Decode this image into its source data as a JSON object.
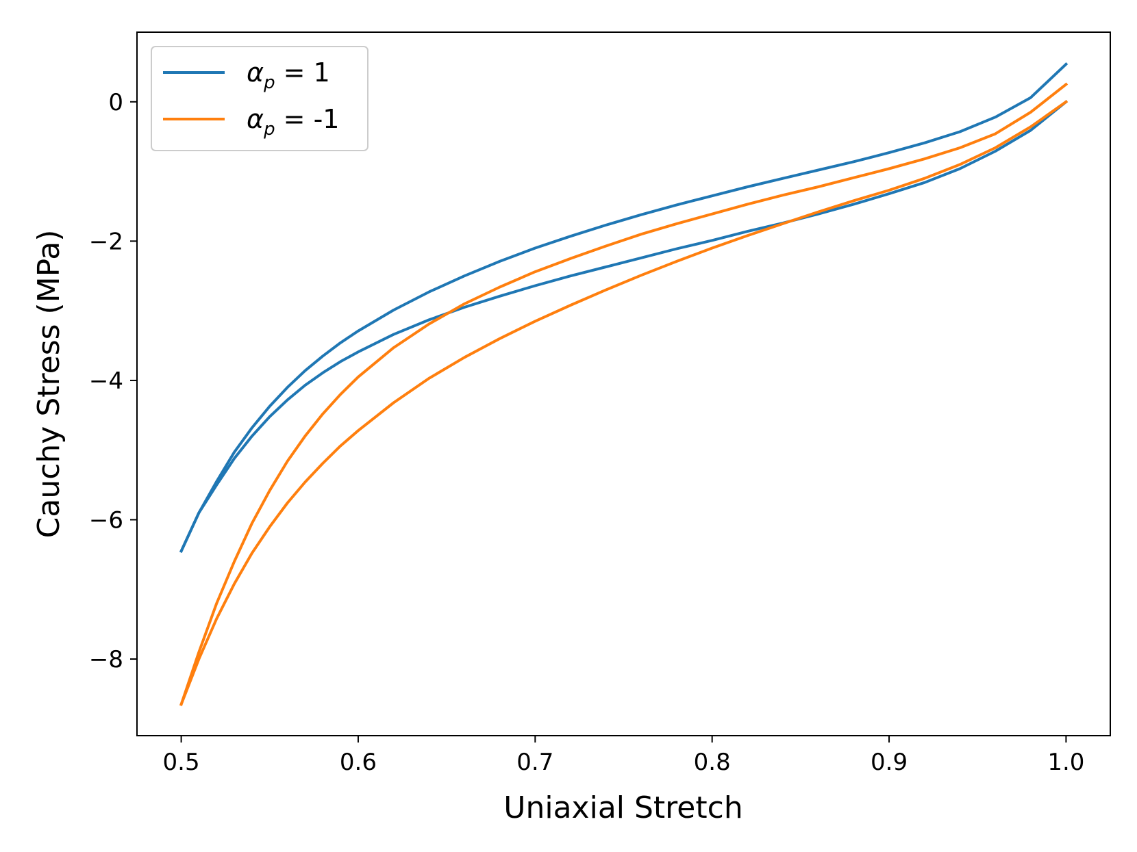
{
  "chart_data": {
    "type": "line",
    "xlabel": "Uniaxial Stretch",
    "ylabel": "Cauchy Stress (MPa)",
    "xlim": [
      0.475,
      1.025
    ],
    "ylim": [
      -9.1,
      1.0
    ],
    "xticks": [
      0.5,
      0.6,
      0.7,
      0.8,
      0.9,
      1.0
    ],
    "xtick_labels": [
      "0.5",
      "0.6",
      "0.7",
      "0.8",
      "0.9",
      "1.0"
    ],
    "yticks": [
      0,
      -2,
      -4,
      -6,
      -8
    ],
    "ytick_labels": [
      "0",
      "−2",
      "−4",
      "−6",
      "−8"
    ],
    "grid": false,
    "legend_position": "top-left",
    "series": [
      {
        "name": "α_p = 1",
        "legend_symbol": "α",
        "legend_sub": "p",
        "legend_value": " = 1",
        "color": "#1f77b4",
        "branches": [
          {
            "x": [
              0.5,
              0.51,
              0.52,
              0.53,
              0.54,
              0.55,
              0.56,
              0.57,
              0.58,
              0.59,
              0.6,
              0.62,
              0.64,
              0.66,
              0.68,
              0.7,
              0.72,
              0.74,
              0.76,
              0.78,
              0.8,
              0.82,
              0.84,
              0.86,
              0.88,
              0.9,
              0.92,
              0.94,
              0.96,
              0.98,
              1.0
            ],
            "y": [
              -6.45,
              -5.9,
              -5.45,
              -5.03,
              -4.68,
              -4.37,
              -4.1,
              -3.86,
              -3.65,
              -3.46,
              -3.29,
              -2.99,
              -2.73,
              -2.5,
              -2.29,
              -2.1,
              -1.93,
              -1.77,
              -1.62,
              -1.48,
              -1.35,
              -1.22,
              -1.1,
              -0.98,
              -0.86,
              -0.73,
              -0.59,
              -0.43,
              -0.22,
              0.06,
              0.54
            ]
          },
          {
            "x": [
              0.5,
              0.51,
              0.52,
              0.53,
              0.54,
              0.55,
              0.56,
              0.57,
              0.58,
              0.59,
              0.6,
              0.62,
              0.64,
              0.66,
              0.68,
              0.7,
              0.72,
              0.74,
              0.76,
              0.78,
              0.8,
              0.82,
              0.84,
              0.86,
              0.88,
              0.9,
              0.92,
              0.94,
              0.96,
              0.98,
              1.0
            ],
            "y": [
              -6.45,
              -5.9,
              -5.5,
              -5.12,
              -4.8,
              -4.52,
              -4.28,
              -4.07,
              -3.89,
              -3.73,
              -3.59,
              -3.34,
              -3.13,
              -2.95,
              -2.79,
              -2.64,
              -2.5,
              -2.37,
              -2.24,
              -2.11,
              -1.99,
              -1.86,
              -1.74,
              -1.61,
              -1.47,
              -1.32,
              -1.16,
              -0.96,
              -0.71,
              -0.41,
              0.0
            ]
          }
        ]
      },
      {
        "name": "α_p = -1",
        "legend_symbol": "α",
        "legend_sub": "p",
        "legend_value": " = -1",
        "color": "#ff7f0e",
        "branches": [
          {
            "x": [
              0.5,
              0.51,
              0.52,
              0.53,
              0.54,
              0.55,
              0.56,
              0.57,
              0.58,
              0.59,
              0.6,
              0.62,
              0.64,
              0.66,
              0.68,
              0.7,
              0.72,
              0.74,
              0.76,
              0.78,
              0.8,
              0.82,
              0.84,
              0.86,
              0.88,
              0.9,
              0.92,
              0.94,
              0.96,
              0.98,
              1.0
            ],
            "y": [
              -8.65,
              -7.9,
              -7.2,
              -6.6,
              -6.05,
              -5.58,
              -5.16,
              -4.8,
              -4.48,
              -4.2,
              -3.95,
              -3.53,
              -3.19,
              -2.9,
              -2.66,
              -2.44,
              -2.25,
              -2.07,
              -1.9,
              -1.75,
              -1.61,
              -1.47,
              -1.34,
              -1.22,
              -1.09,
              -0.96,
              -0.82,
              -0.66,
              -0.46,
              -0.15,
              0.25
            ]
          },
          {
            "x": [
              0.5,
              0.51,
              0.52,
              0.53,
              0.54,
              0.55,
              0.56,
              0.57,
              0.58,
              0.59,
              0.6,
              0.62,
              0.64,
              0.66,
              0.68,
              0.7,
              0.72,
              0.74,
              0.76,
              0.78,
              0.8,
              0.82,
              0.84,
              0.86,
              0.88,
              0.9,
              0.92,
              0.94,
              0.96,
              0.98,
              1.0
            ],
            "y": [
              -8.65,
              -8.0,
              -7.42,
              -6.92,
              -6.48,
              -6.1,
              -5.76,
              -5.46,
              -5.19,
              -4.94,
              -4.72,
              -4.32,
              -3.97,
              -3.67,
              -3.4,
              -3.15,
              -2.92,
              -2.7,
              -2.49,
              -2.29,
              -2.1,
              -1.92,
              -1.75,
              -1.58,
              -1.42,
              -1.27,
              -1.1,
              -0.9,
              -0.66,
              -0.36,
              0.0
            ]
          }
        ]
      }
    ]
  }
}
